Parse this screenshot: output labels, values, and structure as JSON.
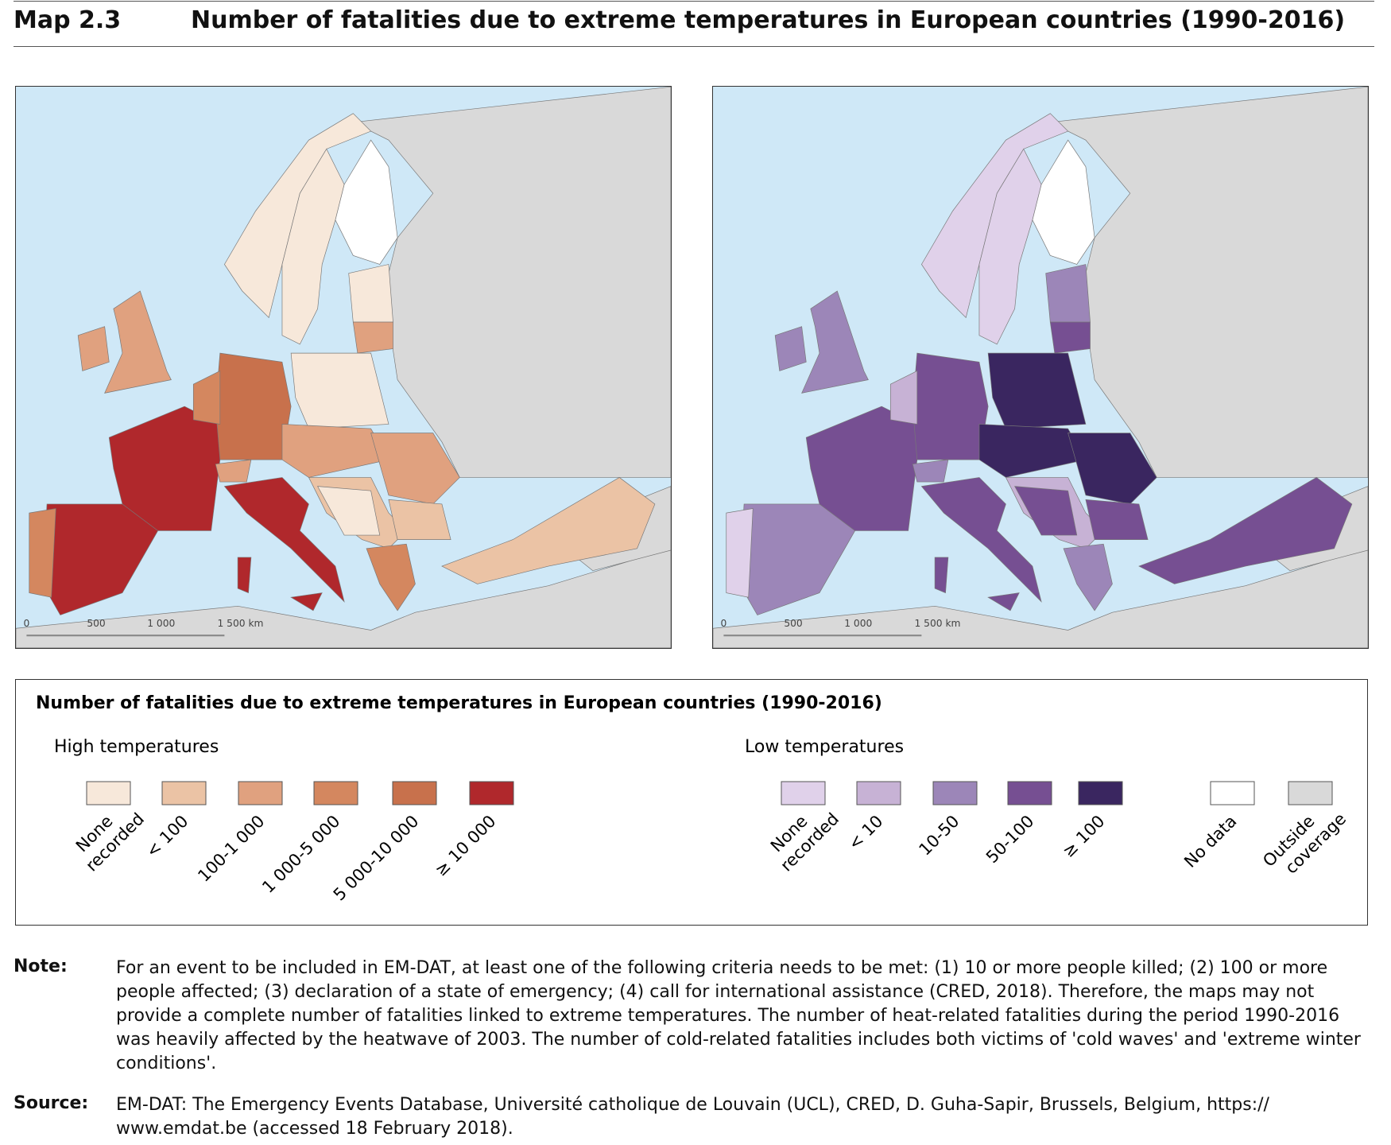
{
  "header": {
    "label": "Map 2.3",
    "title": "Number of fatalities due to extreme temperatures in European countries (1990-2016)"
  },
  "maps": [
    {
      "scale_labels": [
        "0",
        "500",
        "1 000",
        "1 500 km"
      ]
    },
    {
      "scale_labels": [
        "0",
        "500",
        "1 000",
        "1 500 km"
      ]
    }
  ],
  "legend": {
    "title": "Number of fatalities due to extreme temperatures in European countries (1990-2016)",
    "groups": [
      {
        "title": "High temperatures",
        "items": [
          {
            "label": [
              "None",
              "recorded"
            ],
            "color": "#f7e8da"
          },
          {
            "label": [
              "< 100"
            ],
            "color": "#ebc3a5"
          },
          {
            "label": [
              "100-1 000"
            ],
            "color": "#e0a17f"
          },
          {
            "label": [
              "1 000-5 000"
            ],
            "color": "#d4875f"
          },
          {
            "label": [
              "5 000-10 000"
            ],
            "color": "#c8714c"
          },
          {
            "label": [
              "≥ 10 000"
            ],
            "color": "#b0282c"
          }
        ]
      },
      {
        "title": "Low temperatures",
        "items": [
          {
            "label": [
              "None",
              "recorded"
            ],
            "color": "#e0d1ea"
          },
          {
            "label": [
              "< 10"
            ],
            "color": "#c7b2d5"
          },
          {
            "label": [
              "10-50"
            ],
            "color": "#9c86b8"
          },
          {
            "label": [
              "50-100"
            ],
            "color": "#764f92"
          },
          {
            "label": [
              "≥ 100"
            ],
            "color": "#3a2660"
          }
        ]
      }
    ],
    "extra": [
      {
        "label": [
          "No data"
        ],
        "color": "#ffffff"
      },
      {
        "label": [
          "Outside",
          "coverage"
        ],
        "color": "#d9d9d9"
      }
    ]
  },
  "note": {
    "label": "Note:",
    "text": "For an event to be included in EM-DAT, at least one of the following criteria needs to be met: (1) 10 or more people killed; (2) 100 or more people affected; (3) declaration of a state of emergency; (4) call for international assistance (CRED, 2018). Therefore, the maps may not provide a complete number of fatalities linked to extreme temperatures. The number of heat-related fatalities during the period 1990-2016 was heavily affected by the heatwave of 2003. The number of cold-related fatalities includes both victims of 'cold waves' and 'extreme winter conditions'."
  },
  "source": {
    "label": "Source:",
    "text": "EM-DAT: The Emergency Events Database, Université catholique de Louvain (UCL), CRED, D. Guha-Sapir, Brussels, Belgium, https:// www.emdat.be (accessed 18 February 2018)."
  }
}
